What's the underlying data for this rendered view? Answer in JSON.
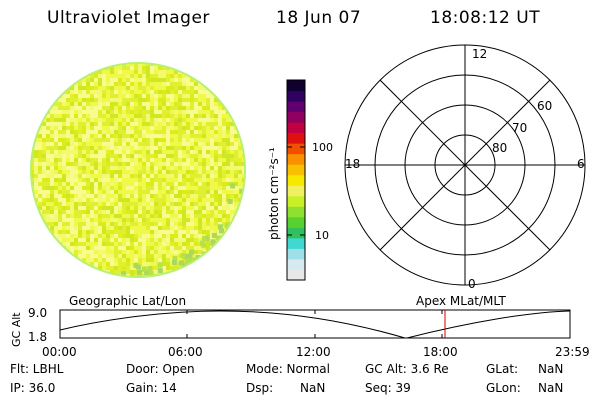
{
  "header": {
    "instrument": "Ultraviolet Imager",
    "date": "18 Jun 07",
    "time": "18:08:12 UT"
  },
  "image_panel": {
    "noise_seed": 7
  },
  "colorbar": {
    "unit_label": "photon cm⁻²s⁻¹",
    "ticks": [
      {
        "label": "100",
        "value": 100
      },
      {
        "label": "10",
        "value": 10
      }
    ],
    "colors": [
      "#e8e8e8",
      "#d6eaf0",
      "#9fe0e8",
      "#40d8d0",
      "#30c060",
      "#58d030",
      "#90e030",
      "#c8f028",
      "#f0f060",
      "#f8e800",
      "#f8c000",
      "#f89000",
      "#f05000",
      "#e01010",
      "#c00040",
      "#900060",
      "#600070",
      "#300060",
      "#100030"
    ]
  },
  "polar_plot": {
    "mlt_labels": {
      "top": "12",
      "left": "18",
      "right": "6",
      "bottom": "0"
    },
    "lat_labels": [
      "60",
      "70",
      "80"
    ]
  },
  "orbit_panel": {
    "left_label": "Geographic Lat/Lon",
    "right_label": "Apex MLat/MLT",
    "axis_title": "GC Alt",
    "y_ticks": [
      "9.0",
      "1.8"
    ],
    "x_ticks": [
      "00:00",
      "06:00",
      "12:00",
      "18:00",
      "23:59"
    ],
    "current_time_marker": "18:08"
  },
  "info": {
    "row1": {
      "filter": "Flt: LBHL",
      "door": "Door: Open",
      "mode": "Mode: Normal",
      "gc_alt": "GC Alt: 3.6 Re",
      "glat_label": "GLat:",
      "glat_value": "NaN"
    },
    "row2": {
      "ip": "IP: 36.0",
      "gain": "Gain: 14",
      "dsp_label": "Dsp:",
      "dsp_value": "NaN",
      "seq": "Seq: 39",
      "glon_label": "GLon:",
      "glon_value": "NaN"
    }
  }
}
